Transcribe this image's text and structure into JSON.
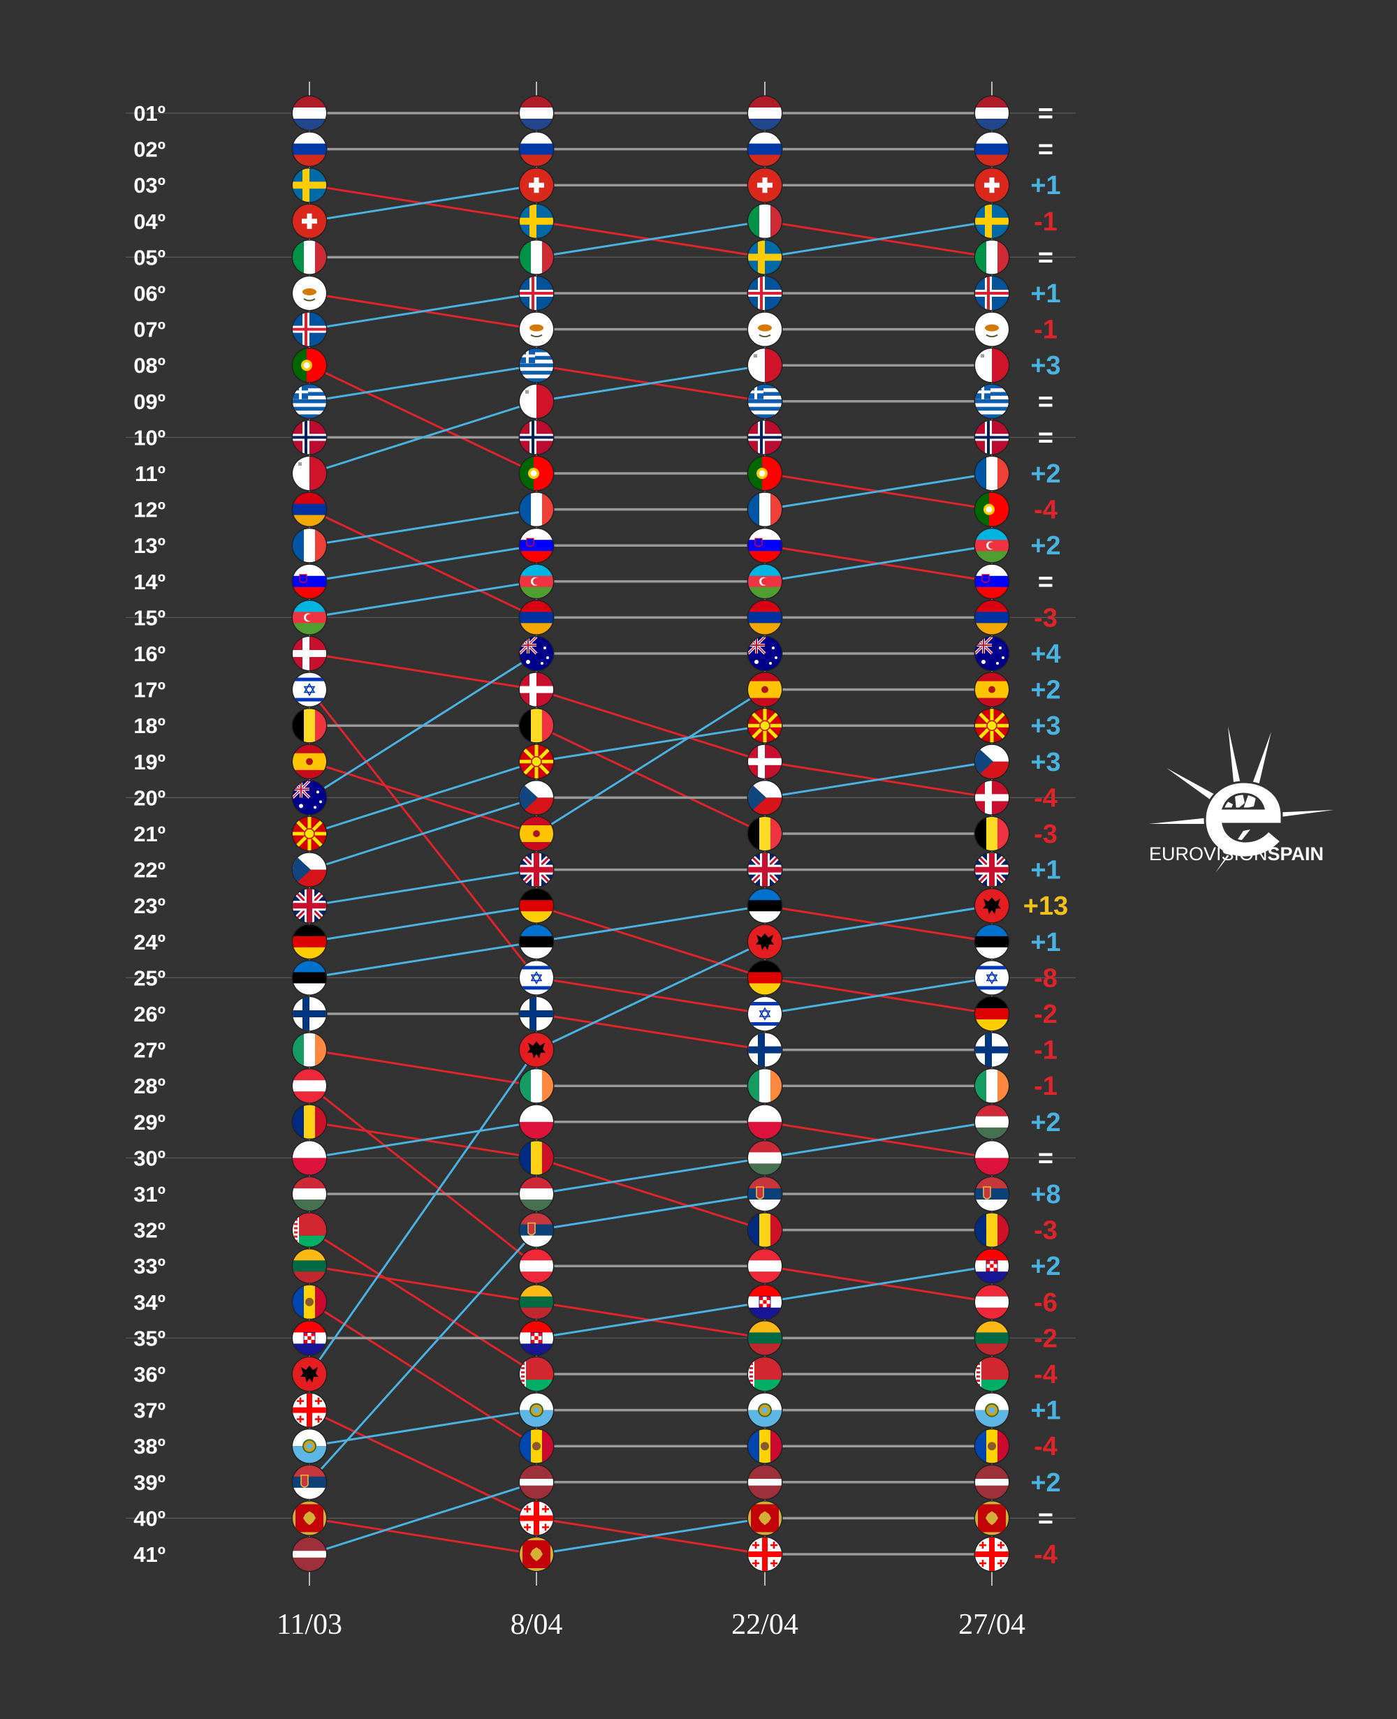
{
  "chart_data": {
    "type": "table",
    "dates": [
      "11/03",
      "8/04",
      "22/04",
      "27/04"
    ],
    "rank_labels": [
      "01º",
      "02º",
      "03º",
      "04º",
      "05º",
      "06º",
      "07º",
      "08º",
      "09º",
      "10º",
      "11º",
      "12º",
      "13º",
      "14º",
      "15º",
      "16º",
      "17º",
      "18º",
      "19º",
      "20º",
      "21º",
      "22º",
      "23º",
      "24º",
      "25º",
      "26º",
      "27º",
      "28º",
      "29º",
      "30º",
      "31º",
      "32º",
      "33º",
      "34º",
      "35º",
      "36º",
      "37º",
      "38º",
      "39º",
      "40º",
      "41º"
    ],
    "rankings": [
      [
        "nl",
        "ru",
        "se",
        "ch",
        "it",
        "cy",
        "is",
        "pt",
        "gr",
        "no",
        "mt",
        "am",
        "fr",
        "si",
        "az",
        "dk",
        "il",
        "be",
        "es",
        "au",
        "mk",
        "cz",
        "gb",
        "de",
        "ee",
        "fi",
        "ie",
        "at",
        "ro",
        "pl",
        "hu",
        "by",
        "lt",
        "md",
        "hr",
        "al",
        "ge",
        "sm",
        "rs",
        "me",
        "lv"
      ],
      [
        "nl",
        "ru",
        "ch",
        "se",
        "it",
        "is",
        "cy",
        "gr",
        "mt",
        "no",
        "pt",
        "fr",
        "si",
        "az",
        "am",
        "au",
        "dk",
        "be",
        "mk",
        "cz",
        "es",
        "gb",
        "de",
        "ee",
        "il",
        "fi",
        "al",
        "ie",
        "pl",
        "ro",
        "hu",
        "rs",
        "at",
        "lt",
        "hr",
        "by",
        "sm",
        "md",
        "lv",
        "ge",
        "me"
      ],
      [
        "nl",
        "ru",
        "ch",
        "it",
        "se",
        "is",
        "cy",
        "mt",
        "gr",
        "no",
        "pt",
        "fr",
        "si",
        "az",
        "am",
        "au",
        "es",
        "mk",
        "dk",
        "cz",
        "be",
        "gb",
        "ee",
        "al",
        "de",
        "il",
        "fi",
        "ie",
        "pl",
        "hu",
        "rs",
        "ro",
        "at",
        "hr",
        "lt",
        "by",
        "sm",
        "md",
        "lv",
        "me",
        "ge"
      ],
      [
        "nl",
        "ru",
        "ch",
        "se",
        "it",
        "is",
        "cy",
        "mt",
        "gr",
        "no",
        "fr",
        "pt",
        "az",
        "si",
        "am",
        "au",
        "es",
        "mk",
        "cz",
        "dk",
        "be",
        "gb",
        "al",
        "ee",
        "il",
        "de",
        "fi",
        "ie",
        "hu",
        "pl",
        "rs",
        "ro",
        "hr",
        "at",
        "lt",
        "by",
        "sm",
        "md",
        "lv",
        "me",
        "ge"
      ]
    ],
    "changes": [
      "=",
      "=",
      "+1",
      "-1",
      "=",
      "+1",
      "-1",
      "+3",
      "=",
      "=",
      "+2",
      "-4",
      "+2",
      "=",
      "-3",
      "+4",
      "+2",
      "+3",
      "+3",
      "-4",
      "-3",
      "+1",
      "+13",
      "+1",
      "-8",
      "-2",
      "-1",
      "-1",
      "+2",
      "=",
      "+8",
      "-3",
      "+2",
      "-6",
      "-2",
      "-4",
      "+1",
      "-4",
      "+2",
      "=",
      "-4"
    ],
    "colors": {
      "background": "#333333",
      "rise_line": "#4ab3e2",
      "fall_line": "#e0242b",
      "same_line": "#9a9a9a",
      "rise_text": "#4ab3e2",
      "fall_text": "#e0242b",
      "same_text": "#ffffff",
      "big_rise_text": "#f2c21a"
    }
  },
  "brand": {
    "name_light": "EUROVISION",
    "name_bold": "SPAIN"
  }
}
